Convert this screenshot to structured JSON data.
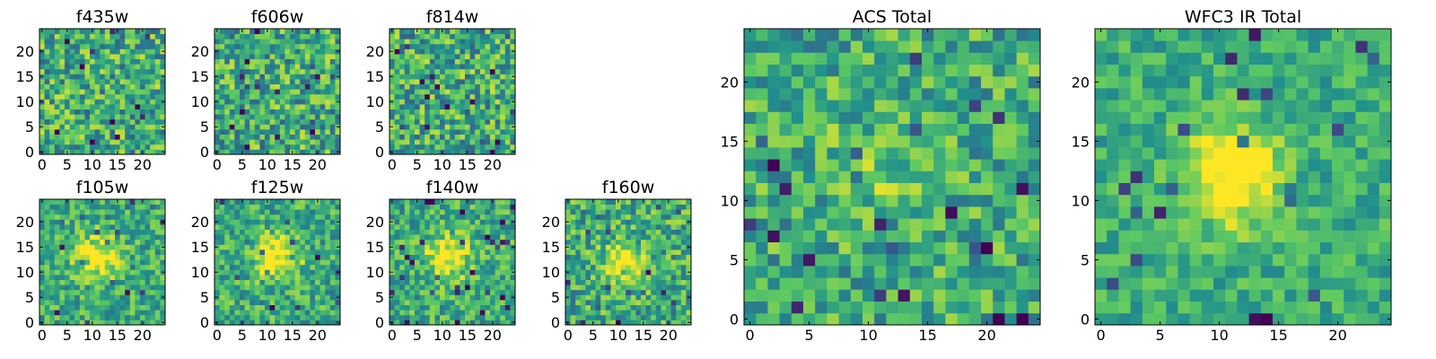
{
  "figure": {
    "colormap": [
      "#440154",
      "#3b528b",
      "#21918c",
      "#5ec962",
      "#fde725"
    ],
    "frame_color": "#000000"
  },
  "chart_data": [
    {
      "type": "heatmap",
      "title": "f435w",
      "grid_size": 25,
      "xticks": [
        0,
        5,
        10,
        15,
        20
      ],
      "yticks": [
        0,
        5,
        10,
        15,
        20
      ],
      "xlim": [
        -0.5,
        24.5
      ],
      "ylim": [
        -0.5,
        24.5
      ],
      "seed": 11,
      "blob": null,
      "noise": 0.55
    },
    {
      "type": "heatmap",
      "title": "f606w",
      "grid_size": 25,
      "xticks": [
        0,
        5,
        10,
        15,
        20
      ],
      "yticks": [
        0,
        5,
        10,
        15,
        20
      ],
      "xlim": [
        -0.5,
        24.5
      ],
      "ylim": [
        -0.5,
        24.5
      ],
      "seed": 23,
      "blob": null,
      "noise": 0.55
    },
    {
      "type": "heatmap",
      "title": "f814w",
      "grid_size": 25,
      "xticks": [
        0,
        5,
        10,
        15,
        20
      ],
      "yticks": [
        0,
        5,
        10,
        15,
        20
      ],
      "xlim": [
        -0.5,
        24.5
      ],
      "ylim": [
        -0.5,
        24.5
      ],
      "seed": 37,
      "blob": null,
      "noise": 0.55
    },
    {
      "type": "heatmap",
      "title": "f105w",
      "grid_size": 25,
      "xticks": [
        0,
        5,
        10,
        15,
        20
      ],
      "yticks": [
        0,
        5,
        10,
        15,
        20
      ],
      "xlim": [
        -0.5,
        24.5
      ],
      "ylim": [
        -0.5,
        24.5
      ],
      "seed": 41,
      "blob": {
        "x": 11,
        "y": 13,
        "sigma": 3.0,
        "amp": 0.45
      },
      "noise": 0.4
    },
    {
      "type": "heatmap",
      "title": "f125w",
      "grid_size": 25,
      "xticks": [
        0,
        5,
        10,
        15,
        20
      ],
      "yticks": [
        0,
        5,
        10,
        15,
        20
      ],
      "xlim": [
        -0.5,
        24.5
      ],
      "ylim": [
        -0.5,
        24.5
      ],
      "seed": 53,
      "blob": {
        "x": 12,
        "y": 13,
        "sigma": 3.0,
        "amp": 0.45
      },
      "noise": 0.42
    },
    {
      "type": "heatmap",
      "title": "f140w",
      "grid_size": 25,
      "xticks": [
        0,
        5,
        10,
        15,
        20
      ],
      "yticks": [
        0,
        5,
        10,
        15,
        20
      ],
      "xlim": [
        -0.5,
        24.5
      ],
      "ylim": [
        -0.5,
        24.5
      ],
      "seed": 67,
      "blob": {
        "x": 11,
        "y": 13,
        "sigma": 3.0,
        "amp": 0.45
      },
      "noise": 0.42
    },
    {
      "type": "heatmap",
      "title": "f160w",
      "grid_size": 25,
      "xticks": [
        0,
        5,
        10,
        15,
        20
      ],
      "yticks": [
        0,
        5,
        10,
        15,
        20
      ],
      "xlim": [
        -0.5,
        24.5
      ],
      "ylim": [
        -0.5,
        24.5
      ],
      "seed": 79,
      "blob": {
        "x": 11,
        "y": 12,
        "sigma": 2.6,
        "amp": 0.5
      },
      "noise": 0.48
    },
    {
      "type": "heatmap",
      "title": "ACS Total",
      "grid_size": 25,
      "xticks": [
        0,
        5,
        10,
        15,
        20
      ],
      "yticks": [
        0,
        5,
        10,
        15,
        20
      ],
      "xlim": [
        -0.5,
        24.5
      ],
      "ylim": [
        -0.5,
        24.5
      ],
      "seed": 83,
      "blob": {
        "x": 10,
        "y": 13,
        "sigma": 2.5,
        "amp": 0.15
      },
      "noise": 0.45
    },
    {
      "type": "heatmap",
      "title": "WFC3 IR Total",
      "grid_size": 25,
      "xticks": [
        0,
        5,
        10,
        15,
        20
      ],
      "yticks": [
        0,
        5,
        10,
        15,
        20
      ],
      "xlim": [
        -0.5,
        24.5
      ],
      "ylim": [
        -0.5,
        24.5
      ],
      "seed": 97,
      "blob": {
        "x": 11,
        "y": 12,
        "sigma": 2.8,
        "amp": 0.55
      },
      "noise": 0.3
    }
  ]
}
